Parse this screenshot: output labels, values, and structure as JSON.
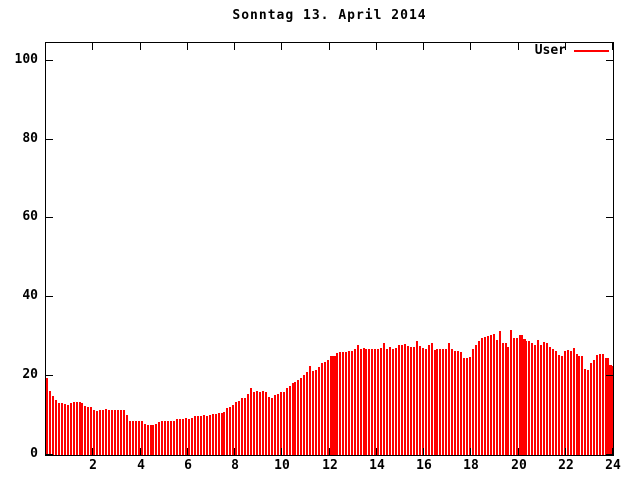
{
  "title": "Sonntag 13. April 2014",
  "legend": {
    "label": "User",
    "color": "#ff0000",
    "position": "top-right-inside"
  },
  "colors": {
    "bar": "#ff0000",
    "axis": "#000000",
    "background": "#ffffff"
  },
  "chart_data": {
    "type": "bar",
    "title": "Sonntag 13. April 2014",
    "xlabel": "",
    "ylabel": "",
    "series_name": "User",
    "xlim": [
      0,
      24
    ],
    "ylim": [
      0,
      104.5
    ],
    "x_ticks": [
      2,
      4,
      6,
      8,
      10,
      12,
      14,
      16,
      18,
      20,
      22,
      24
    ],
    "x_tick_labels": [
      "2",
      "4",
      "6",
      "8",
      "10",
      "12",
      "14",
      "16",
      "18",
      "20",
      "22",
      "24"
    ],
    "y_ticks": [
      0,
      20,
      40,
      60,
      80,
      100
    ],
    "y_tick_labels": [
      "0",
      "20",
      "40",
      "60",
      "80",
      "100"
    ],
    "grid": false,
    "bar_color": "#ff0000",
    "bar_interval_hours": 0.125,
    "wide_bars": [
      96,
      97,
      160,
      161,
      189,
      190
    ],
    "values": [
      19.5,
      16.2,
      15.0,
      13.9,
      13.3,
      13.1,
      13.0,
      12.7,
      13.3,
      13.5,
      13.4,
      13.5,
      13.3,
      12.4,
      12.2,
      12.1,
      11.4,
      11.2,
      11.3,
      11.5,
      11.6,
      11.5,
      11.4,
      11.5,
      11.5,
      11.4,
      11.3,
      10.2,
      8.7,
      8.6,
      8.5,
      8.6,
      8.5,
      7.8,
      7.7,
      7.6,
      7.7,
      7.8,
      8.4,
      8.5,
      8.6,
      8.5,
      8.6,
      8.7,
      9.1,
      9.2,
      9.2,
      9.3,
      9.2,
      9.3,
      9.8,
      10.0,
      10.0,
      10.1,
      10.0,
      10.2,
      10.3,
      10.5,
      10.6,
      10.7,
      11.0,
      11.9,
      12.1,
      12.6,
      13.4,
      13.8,
      14.4,
      14.5,
      15.5,
      16.9,
      16.1,
      16.2,
      16.1,
      16.2,
      16.0,
      14.8,
      14.4,
      15.2,
      15.4,
      16.0,
      16.1,
      17.0,
      17.4,
      18.2,
      18.4,
      19.1,
      19.6,
      20.3,
      21.0,
      22.5,
      21.4,
      21.6,
      22.2,
      23.3,
      23.7,
      24.0,
      25.0,
      25.2,
      25.8,
      26.0,
      26.2,
      26.0,
      26.4,
      26.5,
      26.8,
      28.0,
      26.9,
      27.1,
      26.8,
      27.0,
      27.0,
      27.0,
      26.9,
      27.2,
      28.4,
      27.0,
      27.3,
      26.9,
      27.1,
      27.8,
      28.0,
      28.1,
      27.6,
      27.3,
      27.5,
      29.0,
      27.6,
      27.2,
      26.8,
      28.0,
      28.3,
      26.7,
      26.8,
      26.9,
      27.0,
      26.8,
      28.4,
      26.9,
      26.5,
      26.3,
      26.2,
      24.7,
      24.6,
      24.8,
      27.0,
      28.0,
      28.8,
      29.7,
      30.0,
      30.2,
      30.5,
      30.8,
      29.2,
      31.4,
      28.5,
      28.3,
      27.5,
      31.6,
      29.7,
      29.8,
      30.5,
      29.5,
      28.8,
      29.0,
      28.4,
      28.0,
      29.2,
      28.0,
      28.6,
      28.5,
      27.3,
      27.0,
      26.5,
      25.4,
      25.1,
      26.3,
      26.6,
      26.5,
      27.1,
      25.6,
      25.2,
      25.0,
      21.8,
      21.6,
      23.3,
      24.0,
      25.4,
      25.7,
      25.5,
      24.6,
      22.8,
      22.5
    ]
  }
}
